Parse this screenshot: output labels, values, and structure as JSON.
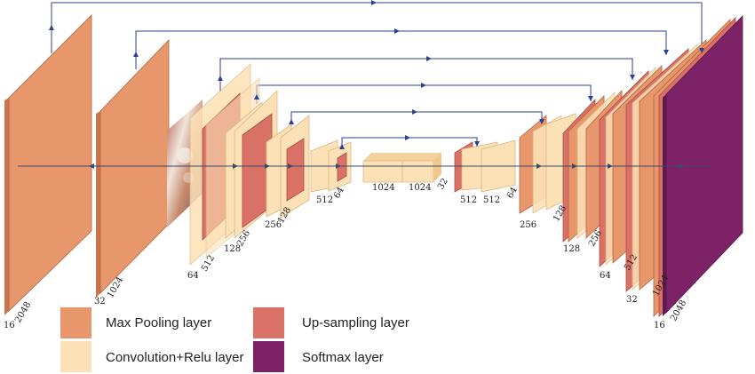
{
  "colors": {
    "max_pooling": "#e8976c",
    "convolution_relu": "#fde1b6",
    "up_sampling": "#d97166",
    "softmax": "#7d2266",
    "connector": "#2e3f8f"
  },
  "legend": {
    "max_pooling": "Max Pooling layer",
    "convolution_relu": "Convolution+Relu layer",
    "up_sampling": "Up-sampling layer",
    "softmax": "Softmax layer"
  },
  "labels": {
    "enc0_ch": "16",
    "enc0_sz": "2048",
    "enc1_ch": "32",
    "enc1_sz": "1024",
    "enc2_ch": "64",
    "enc2_sz": "512",
    "enc3_a": "128",
    "enc3_b": "256",
    "enc4_a": "256",
    "enc4_b": "128",
    "enc5_a": "512",
    "enc5_b": "64",
    "mid_a": "1024",
    "mid_b": "1024",
    "mid_c": "32",
    "dec5_a": "512",
    "dec5_b": "512",
    "dec5_c": "64",
    "dec4_a": "256",
    "dec4_b": "128",
    "dec3_a": "128",
    "dec3_b": "256",
    "dec2_a": "64",
    "dec2_b": "512",
    "dec1_a": "32",
    "dec1_b": "1024",
    "dec0_a": "16",
    "dec0_b": "2048"
  }
}
